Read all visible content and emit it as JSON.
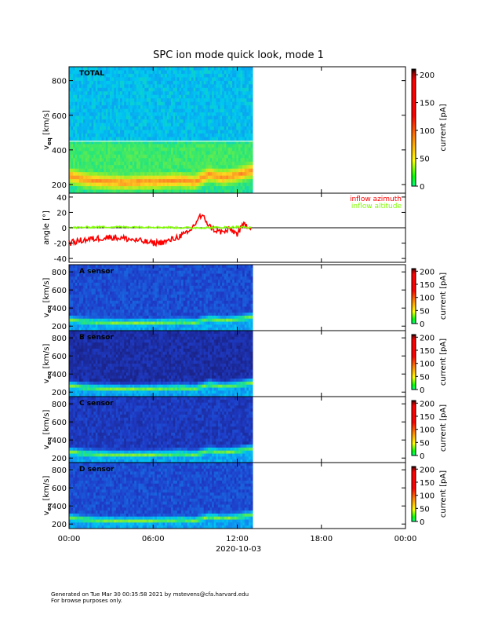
{
  "title": "SPC ion mode quick look, mode 1",
  "footer": {
    "line1": "Generated on Tue Mar 30 00:35:58 2021 by mstevens@cfa.harvard.edu",
    "line2": "For browse purposes only."
  },
  "x_axis": {
    "ticks": [
      "00:00",
      "06:00",
      "12:00",
      "18:00",
      "00:00"
    ],
    "date_label": "2020-10-03"
  },
  "chart_data": [
    {
      "type": "heatmap",
      "panel": "TOTAL",
      "label": "TOTAL",
      "ylabel_main": "v",
      "ylabel_sub": "eq",
      "ylabel_unit": "[km/s]",
      "yticks": [
        200,
        400,
        600,
        800
      ],
      "ylim": [
        150,
        880
      ],
      "colorbar_label": "current [pA]",
      "colorbar_ticks": [
        0,
        50,
        100,
        150,
        200
      ],
      "x_range_hours": [
        0,
        24
      ],
      "data_coverage_hours": [
        0,
        13.1
      ],
      "ridge_hours": [
        0,
        1,
        2,
        3,
        4,
        5,
        6,
        7,
        8,
        9,
        10,
        11,
        12,
        13
      ],
      "ridge_speed": [
        250,
        230,
        220,
        215,
        210,
        215,
        215,
        220,
        225,
        215,
        260,
        240,
        255,
        280
      ]
    },
    {
      "type": "line",
      "panel": "angle",
      "ylabel": "angle [°]",
      "yticks": [
        -40,
        -20,
        0,
        20,
        40
      ],
      "ylim": [
        -45,
        45
      ],
      "series": [
        {
          "name": "inflow azimuth",
          "color": "#ff0000",
          "x": [
            0,
            0.5,
            1,
            2,
            3,
            4,
            5,
            6,
            7,
            8,
            8.5,
            9,
            9.3,
            9.7,
            10,
            10.5,
            11,
            11.5,
            12,
            12.5,
            13
          ],
          "y": [
            -20,
            -18,
            -16,
            -14,
            -12,
            -14,
            -17,
            -20,
            -18,
            -10,
            -7,
            5,
            15,
            12,
            2,
            -4,
            -6,
            -2,
            -8,
            5,
            0
          ]
        },
        {
          "name": "inflow altitude",
          "color": "#80ff00",
          "x": [
            0,
            2,
            4,
            6,
            8,
            10,
            12,
            13
          ],
          "y": [
            0,
            1,
            1,
            1,
            0,
            0,
            1,
            0
          ]
        }
      ]
    },
    {
      "type": "heatmap",
      "panel": "A sensor",
      "label": "A sensor",
      "ylabel_main": "v",
      "ylabel_sub": "eq",
      "ylabel_unit": "[km/s]",
      "yticks": [
        200,
        400,
        600,
        800
      ],
      "ylim": [
        150,
        880
      ],
      "colorbar_label": "current [pA]",
      "colorbar_ticks": [
        0,
        50,
        100,
        150,
        200
      ],
      "data_coverage_hours": [
        0,
        13.1
      ]
    },
    {
      "type": "heatmap",
      "panel": "B sensor",
      "label": "B sensor",
      "ylabel_main": "v",
      "ylabel_sub": "eq",
      "ylabel_unit": "[km/s]",
      "yticks": [
        200,
        400,
        600,
        800
      ],
      "ylim": [
        150,
        880
      ],
      "colorbar_label": "current [pA]",
      "colorbar_ticks": [
        0,
        50,
        100,
        150,
        200
      ],
      "data_coverage_hours": [
        0,
        13.1
      ]
    },
    {
      "type": "heatmap",
      "panel": "C sensor",
      "label": "C sensor",
      "ylabel_main": "v",
      "ylabel_sub": "eq",
      "ylabel_unit": "[km/s]",
      "yticks": [
        200,
        400,
        600,
        800
      ],
      "ylim": [
        150,
        880
      ],
      "colorbar_label": "current [pA]",
      "colorbar_ticks": [
        0,
        50,
        100,
        150,
        200
      ],
      "data_coverage_hours": [
        0,
        13.1
      ]
    },
    {
      "type": "heatmap",
      "panel": "D sensor",
      "label": "D sensor",
      "ylabel_main": "v",
      "ylabel_sub": "eq",
      "ylabel_unit": "[km/s]",
      "yticks": [
        200,
        400,
        600,
        800
      ],
      "ylim": [
        150,
        880
      ],
      "colorbar_label": "current [pA]",
      "colorbar_ticks": [
        0,
        50,
        100,
        150,
        200
      ],
      "data_coverage_hours": [
        0,
        13.1
      ]
    }
  ]
}
